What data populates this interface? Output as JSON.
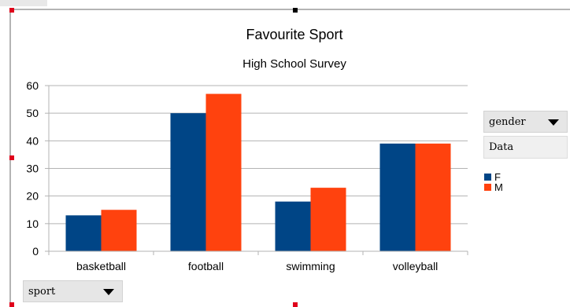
{
  "chart_data": {
    "type": "bar",
    "title": "Favourite Sport",
    "subtitle": "High School Survey",
    "categories": [
      "basketball",
      "football",
      "swimming",
      "volleyball"
    ],
    "series": [
      {
        "name": "F",
        "values": [
          13,
          50,
          18,
          39
        ],
        "color": "#004586"
      },
      {
        "name": "M",
        "values": [
          15,
          57,
          23,
          39
        ],
        "color": "#ff420e"
      }
    ],
    "ylim": [
      0,
      60
    ],
    "yticks": [
      "0",
      "10",
      "20",
      "30",
      "40",
      "50",
      "60"
    ],
    "grid": true,
    "legend_position": "right"
  },
  "pivot": {
    "column_field": "gender",
    "data_label": "Data",
    "row_field": "sport"
  }
}
